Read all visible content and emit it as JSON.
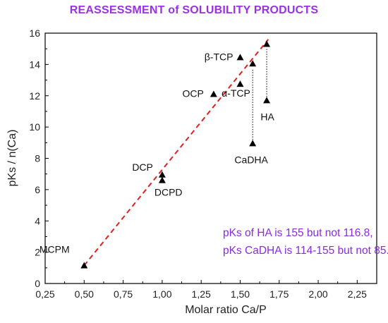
{
  "chart_data": {
    "type": "scatter",
    "title": "REASSESSMENT of SOLUBILITY PRODUCTS",
    "xlabel": "Molar ratio Ca/P",
    "ylabel": "pKs / n(Ca)",
    "xlim": [
      0.25,
      2.375
    ],
    "ylim": [
      0,
      16
    ],
    "x_ticks": [
      "0,25",
      "0,50",
      "0,75",
      "1,00",
      "1,25",
      "1,50",
      "1,75",
      "2,00",
      "2,25"
    ],
    "x_tick_values": [
      0.25,
      0.5,
      0.75,
      1.0,
      1.25,
      1.5,
      1.75,
      2.0,
      2.25
    ],
    "y_ticks": [
      "0",
      "2",
      "4",
      "6",
      "8",
      "10",
      "12",
      "14",
      "16"
    ],
    "y_tick_values": [
      0,
      2,
      4,
      6,
      8,
      10,
      12,
      14,
      16
    ],
    "grid": false,
    "points": [
      {
        "label": "MCPM",
        "x": 0.5,
        "y": 1.15
      },
      {
        "label": "DCP",
        "x": 1.0,
        "y": 6.95
      },
      {
        "label": "DCPD",
        "x": 1.0,
        "y": 6.6
      },
      {
        "label": "OCP",
        "x": 1.33,
        "y": 12.1
      },
      {
        "label": "β-TCP",
        "x": 1.5,
        "y": 14.45
      },
      {
        "label": "α-TCP",
        "x": 1.5,
        "y": 12.75
      },
      {
        "label": "HA",
        "x": 1.67,
        "y": 11.7
      },
      {
        "label": "CaDHA",
        "x": 1.58,
        "y": 8.95
      },
      {
        "label": "",
        "x": 1.58,
        "y": 14.05
      },
      {
        "label": "",
        "x": 1.67,
        "y": 15.3
      }
    ],
    "trend_line": {
      "x": [
        0.5,
        1.68
      ],
      "y": [
        1.15,
        15.6
      ],
      "color": "#e02020",
      "style": "dashed"
    },
    "arrows": [
      {
        "x": 1.58,
        "from": 8.95,
        "to": 14.05,
        "style": "dotted"
      },
      {
        "x": 1.67,
        "from": 11.7,
        "to": 15.3,
        "style": "dotted"
      }
    ],
    "annotation": [
      "pKs of HA is 155 but not 116.8,",
      "pKs CaDHA is 114-155 but not 85."
    ],
    "colors": {
      "title": "#9b30e8",
      "annotation": "#8a2be2",
      "trend": "#e02020",
      "marker": "#000000"
    }
  }
}
